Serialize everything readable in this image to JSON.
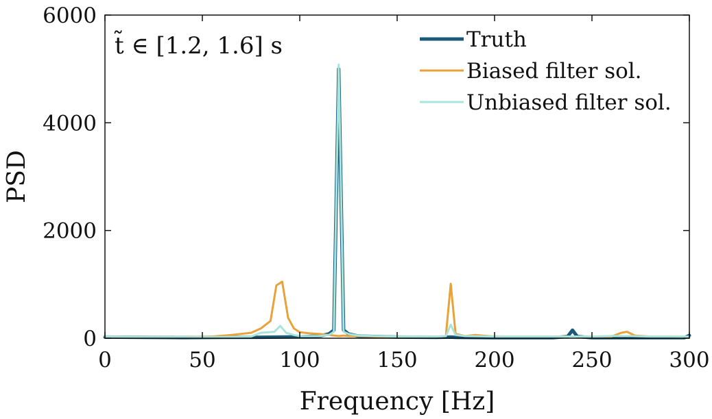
{
  "chart_data": {
    "type": "line",
    "title": "",
    "annotation": "t̃ ∈ [1.2, 1.6] s",
    "xlabel": "Frequency [Hz]",
    "ylabel": "PSD",
    "xlim": [
      0,
      300
    ],
    "ylim": [
      0,
      6000
    ],
    "xticks": [
      0,
      50,
      100,
      150,
      200,
      250,
      300
    ],
    "yticks": [
      0,
      2000,
      4000,
      6000
    ],
    "grid": false,
    "legend_position": "top-right",
    "series": [
      {
        "name": "Truth",
        "color": "#1b5a7a",
        "style": "thick",
        "x": [
          0,
          20,
          40,
          60,
          80,
          100,
          110,
          115,
          117.5,
          120,
          122.5,
          125,
          130,
          150,
          170,
          177.5,
          180,
          200,
          230,
          237.5,
          240,
          242.5,
          250,
          270,
          290,
          297.5,
          300
        ],
        "y": [
          20,
          15,
          12,
          15,
          18,
          25,
          40,
          80,
          150,
          5000,
          150,
          80,
          40,
          20,
          15,
          20,
          15,
          10,
          10,
          30,
          150,
          30,
          10,
          10,
          10,
          10,
          50
        ]
      },
      {
        "name": "Biased filter sol.",
        "color": "#e8a23a",
        "style": "thin",
        "x": [
          0,
          20,
          40,
          55,
          65,
          75,
          80,
          85,
          88,
          91,
          94,
          97,
          100,
          105,
          110,
          115,
          117.5,
          120,
          122.5,
          125,
          130,
          140,
          150,
          160,
          170,
          175,
          177.5,
          180,
          185,
          190,
          200,
          220,
          240,
          250,
          255,
          260,
          265,
          268,
          272,
          280,
          290,
          300
        ],
        "y": [
          30,
          25,
          20,
          30,
          60,
          100,
          180,
          320,
          980,
          1050,
          380,
          180,
          110,
          90,
          80,
          60,
          50,
          40,
          50,
          40,
          40,
          30,
          30,
          30,
          30,
          40,
          1010,
          80,
          40,
          60,
          30,
          30,
          30,
          30,
          30,
          30,
          100,
          120,
          50,
          30,
          30,
          20
        ]
      },
      {
        "name": "Unbiased filter sol.",
        "color": "#a8e4dc",
        "style": "thin",
        "x": [
          0,
          20,
          40,
          60,
          75,
          80,
          84,
          87,
          90,
          93,
          97,
          100,
          105,
          110,
          115,
          117.5,
          120,
          122.5,
          125,
          130,
          140,
          150,
          160,
          170,
          175,
          177.5,
          180,
          185,
          200,
          220,
          240,
          250,
          260,
          270,
          280,
          290,
          300
        ],
        "y": [
          30,
          25,
          20,
          20,
          30,
          100,
          110,
          120,
          230,
          100,
          60,
          40,
          40,
          40,
          60,
          120,
          5080,
          120,
          80,
          50,
          40,
          30,
          30,
          30,
          40,
          250,
          60,
          40,
          30,
          30,
          30,
          30,
          40,
          40,
          30,
          30,
          30
        ]
      }
    ]
  }
}
